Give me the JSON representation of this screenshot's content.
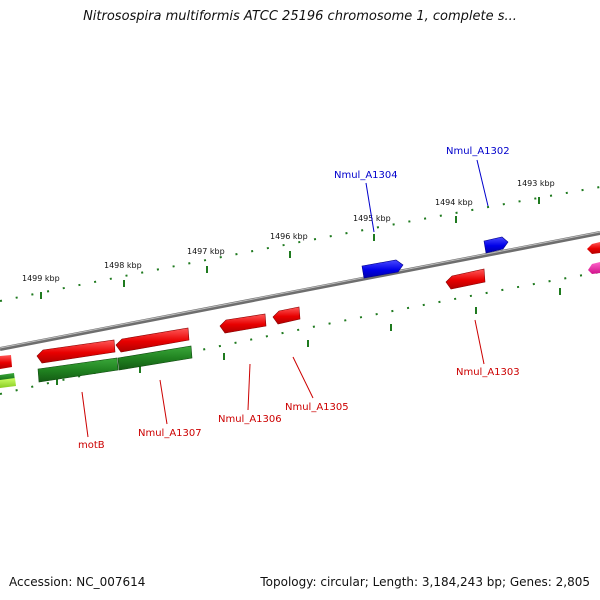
{
  "title": "Nitrosospira multiformis ATCC 25196 chromosome 1, complete s...",
  "footer": {
    "accession": "Accession: NC_007614",
    "topology": "Topology: circular; Length: 3,184,243 bp; Genes: 2,805"
  },
  "ticks": [
    {
      "label": "1499 kbp",
      "kbp": 1499
    },
    {
      "label": "1498 kbp",
      "kbp": 1498
    },
    {
      "label": "1497 kbp",
      "kbp": 1497
    },
    {
      "label": "1496 kbp",
      "kbp": 1496
    },
    {
      "label": "1495 kbp",
      "kbp": 1495
    },
    {
      "label": "1494 kbp",
      "kbp": 1494
    },
    {
      "label": "1493 kbp",
      "kbp": 1493
    }
  ],
  "genes": [
    {
      "name": "Nmul_A1304",
      "strand": "+",
      "color": "#0000ee"
    },
    {
      "name": "Nmul_A1302",
      "strand": "+",
      "color": "#0000ee"
    },
    {
      "name": "Nmul_A1303",
      "strand": "-",
      "color": "#ee0000"
    },
    {
      "name": "Nmul_A1305",
      "strand": "-",
      "color": "#ee0000"
    },
    {
      "name": "Nmul_A1306",
      "strand": "-",
      "color": "#ee0000"
    },
    {
      "name": "Nmul_A1307",
      "strand": "-",
      "color": "#ee0000"
    },
    {
      "name": "motB",
      "strand": "-",
      "color": "#ee0000"
    }
  ],
  "colors": {
    "plus_strand": "#0000ee",
    "minus_strand": "#ee0000",
    "cog_track": "#228b22",
    "backbone": "#888888",
    "tick": "#1f7a1f"
  }
}
